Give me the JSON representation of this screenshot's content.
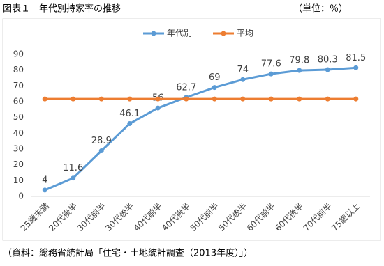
{
  "chart_data": {
    "type": "line",
    "title": "図表１　年代別持家率の推移",
    "unit_label": "（単位：％）",
    "source": "（資料：総務省統計局「住宅・土地統計調査（2013年度）」）",
    "categories": [
      "25歳未満",
      "20代後半",
      "30代前半",
      "30代後半",
      "40代前半",
      "40代後半",
      "50代前半",
      "50代後半",
      "60代前半",
      "60代後半",
      "70代前半",
      "75歳以上"
    ],
    "series": [
      {
        "name": "年代別",
        "color": "#5b9bd5",
        "values": [
          4,
          11.6,
          28.9,
          46.1,
          56,
          62.7,
          69,
          74,
          77.6,
          79.8,
          80.3,
          81.5
        ],
        "data_labels": true
      },
      {
        "name": "平均",
        "color": "#ed7d31",
        "values": [
          61.7,
          61.7,
          61.7,
          61.7,
          61.7,
          61.7,
          61.7,
          61.7,
          61.7,
          61.7,
          61.7,
          61.7
        ],
        "data_labels": false
      }
    ],
    "ylim": [
      0,
      90
    ],
    "yticks": [
      0,
      10,
      20,
      30,
      40,
      50,
      60,
      70,
      80,
      90
    ],
    "grid": false,
    "legend": "top"
  }
}
